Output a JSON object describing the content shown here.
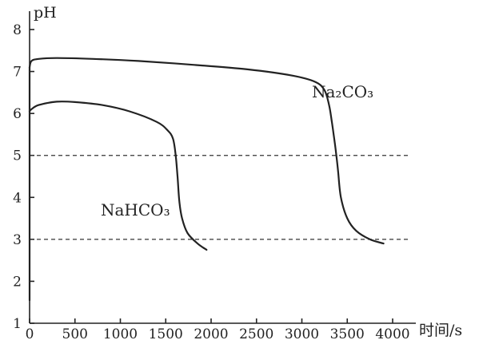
{
  "chart_data": {
    "type": "line",
    "xlabel": "时间/s",
    "ylabel": "pH",
    "xlim": [
      0,
      4000
    ],
    "ylim": [
      1,
      8
    ],
    "x_ticks": [
      "0",
      "500",
      "1000",
      "1500",
      "2000",
      "2500",
      "3000",
      "3500",
      "4000"
    ],
    "y_ticks": [
      "1",
      "2",
      "3",
      "4",
      "5",
      "6",
      "7",
      "8"
    ],
    "reference_lines": [
      5,
      3
    ],
    "series": [
      {
        "name": "Na₂CO₃",
        "x": [
          0,
          0,
          20,
          100,
          300,
          700,
          1200,
          1800,
          2400,
          2900,
          3150,
          3250,
          3300,
          3330,
          3350,
          3380,
          3400,
          3430,
          3500,
          3600,
          3750,
          3900
        ],
        "y": [
          1.55,
          7.1,
          7.25,
          7.3,
          7.32,
          7.3,
          7.25,
          7.16,
          7.05,
          6.9,
          6.75,
          6.55,
          6.2,
          5.8,
          5.5,
          5.0,
          4.6,
          4.0,
          3.5,
          3.2,
          3.0,
          2.9
        ]
      },
      {
        "name": "NaHCO₃",
        "x": [
          0,
          20,
          100,
          300,
          500,
          800,
          1100,
          1400,
          1520,
          1580,
          1610,
          1630,
          1650,
          1680,
          1740,
          1850,
          1950
        ],
        "y": [
          6.05,
          6.1,
          6.2,
          6.28,
          6.27,
          6.2,
          6.05,
          5.8,
          5.6,
          5.4,
          5.0,
          4.5,
          3.9,
          3.5,
          3.15,
          2.9,
          2.75
        ]
      }
    ]
  }
}
